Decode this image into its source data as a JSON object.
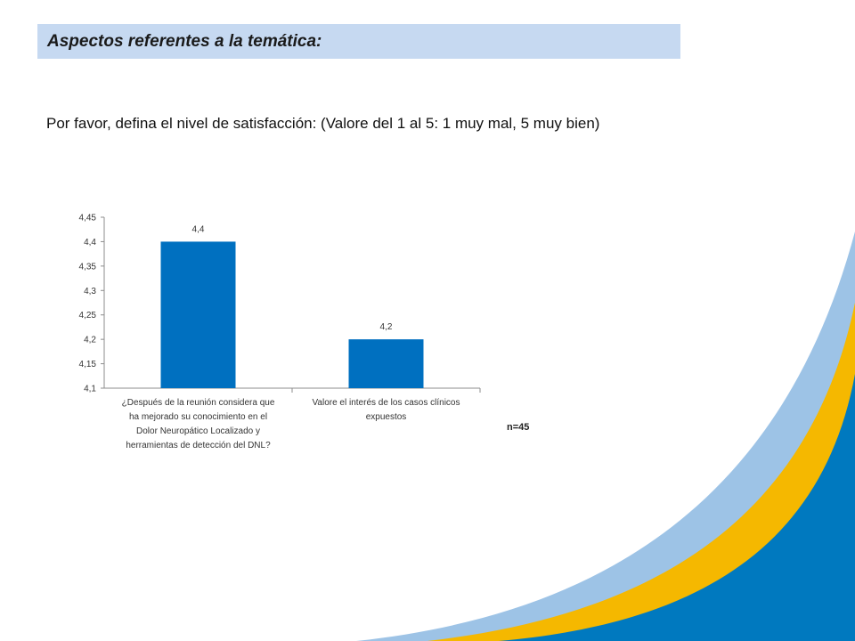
{
  "header": {
    "title": "Aspectos referentes a la temática:"
  },
  "question": "Por favor, defina el nivel de satisfacción: (Valore del 1 al 5: 1 muy mal, 5 muy bien)",
  "sample_size": "n=45",
  "colors": {
    "title_bar": "#c6d9f1",
    "bar": "#0070c0",
    "wave_light": "#9dc3e6",
    "wave_gold": "#f5b800",
    "wave_blue": "#0079bf"
  },
  "chart_data": {
    "type": "bar",
    "categories": [
      "¿Después de la reunión considera que ha mejorado su conocimiento en el Dolor Neuropático Localizado y herramientas de detección del DNL?",
      "Valore el interés de los casos clínicos expuestos"
    ],
    "category_lines": [
      [
        "¿Después de la reunión considera que",
        "ha mejorado su conocimiento en el",
        "Dolor Neuropático Localizado y",
        "herramientas de detección del DNL?"
      ],
      [
        "Valore el interés de los casos clínicos",
        "expuestos"
      ]
    ],
    "values": [
      4.4,
      4.2
    ],
    "data_labels": [
      "4,4",
      "4,2"
    ],
    "yticks": [
      "4,1",
      "4,15",
      "4,2",
      "4,25",
      "4,3",
      "4,35",
      "4,4",
      "4,45"
    ],
    "ylim": [
      4.1,
      4.45
    ],
    "grid": false,
    "legend": "none"
  }
}
